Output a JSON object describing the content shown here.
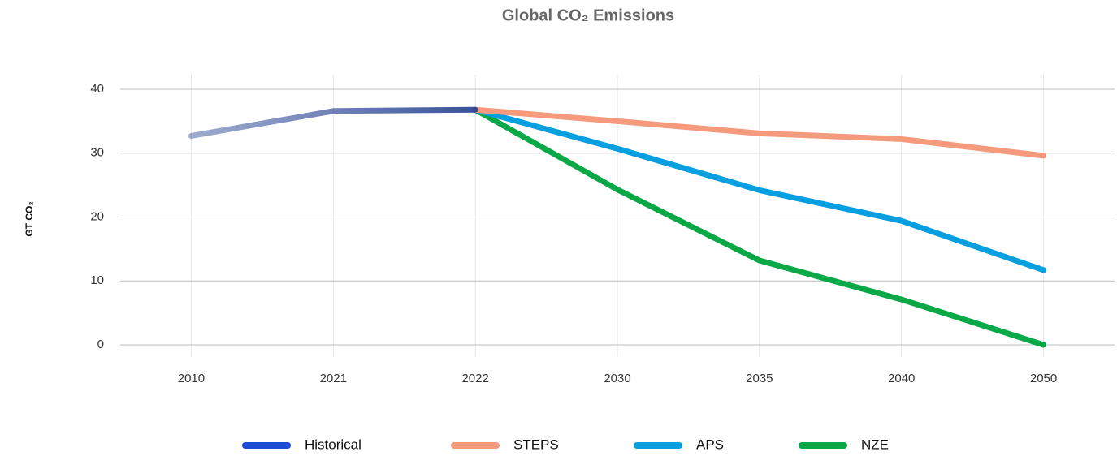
{
  "chart_data": {
    "type": "line",
    "title": "Global CO₂ Emissions",
    "y_label": "GT CO₂",
    "categories": [
      "2010",
      "2021",
      "2022",
      "2030",
      "2035",
      "2040",
      "2050"
    ],
    "series": [
      {
        "name": "Historical",
        "color": "#1c4bd8",
        "values": [
          32.7,
          36.6,
          36.8,
          null,
          null,
          null,
          null
        ]
      },
      {
        "name": "STEPS",
        "color": "#f59a7c",
        "values": [
          null,
          null,
          36.8,
          35.0,
          33.1,
          32.2,
          29.6
        ]
      },
      {
        "name": "APS",
        "color": "#079fe0",
        "values": [
          null,
          null,
          36.8,
          30.7,
          24.2,
          19.4,
          11.7
        ]
      },
      {
        "name": "NZE",
        "color": "#0aa846",
        "values": [
          null,
          null,
          36.8,
          24.3,
          13.2,
          7.1,
          0
        ]
      }
    ],
    "ylim": [
      0,
      40
    ],
    "yticks": [
      0,
      10,
      20,
      30,
      40
    ],
    "grid": true,
    "legend": "bottom"
  }
}
